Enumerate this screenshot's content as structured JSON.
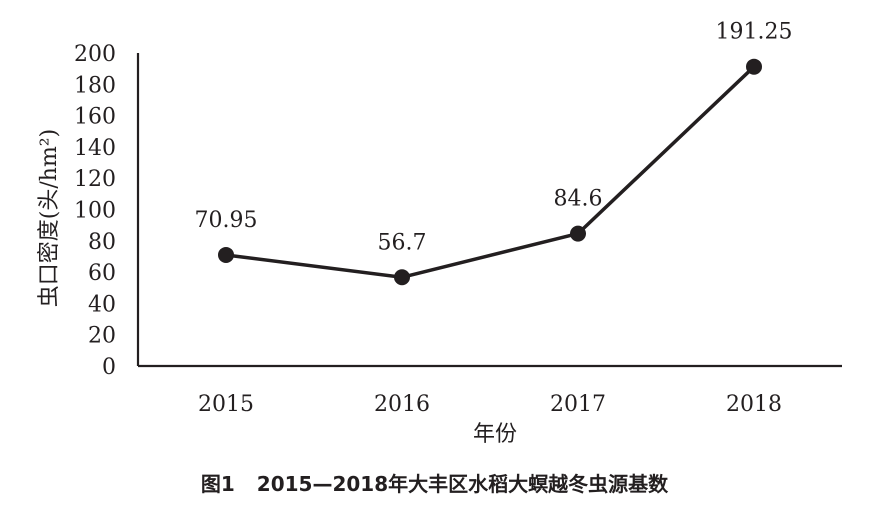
{
  "chart_data": {
    "type": "line",
    "categories": [
      "2015",
      "2016",
      "2017",
      "2018"
    ],
    "series": [
      {
        "values": [
          70.95,
          56.7,
          84.6,
          191.25
        ]
      }
    ],
    "data_labels": [
      "70.95",
      "56.7",
      "84.6",
      "191.25"
    ],
    "ylabel": "虫口密度(头/hm²)",
    "xlabel": "年份",
    "ylim": [
      0,
      200
    ],
    "yticks": [
      0,
      20,
      40,
      60,
      80,
      100,
      120,
      140,
      160,
      180,
      200
    ],
    "grid": false,
    "line_color": "#231f20",
    "marker": "filled-circle"
  },
  "caption": {
    "figure_number": "图1",
    "text": "2015—2018年大丰区水稻大螟越冬虫源基数"
  }
}
